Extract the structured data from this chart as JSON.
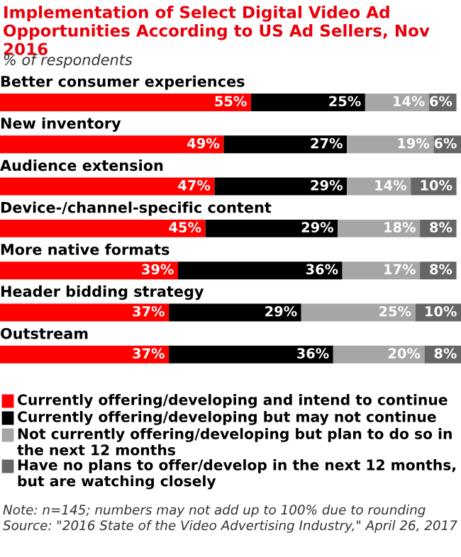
{
  "chart_data": {
    "type": "bar",
    "orientation": "horizontal",
    "stacked": true,
    "title": "Implementation of Select Digital Video Ad Opportunities According to US Ad Sellers, Nov 2016",
    "subtitle": "% of respondents",
    "categories": [
      "Better consumer experiences",
      "New inventory",
      "Audience extension",
      "Device-/channel-specific content",
      "More native formats",
      "Header bidding strategy",
      "Outstream"
    ],
    "series": [
      {
        "name": "Currently offering/developing and intend to continue",
        "color": "#ff0000",
        "values": [
          55,
          49,
          47,
          45,
          39,
          37,
          37
        ],
        "value_labels": [
          "55%",
          "49%",
          "47%",
          "45%",
          "39%",
          "37%",
          "37%"
        ]
      },
      {
        "name": "Currently offering/developing but may not continue",
        "color": "#000000",
        "values": [
          25,
          27,
          29,
          29,
          36,
          29,
          36
        ],
        "value_labels": [
          "25%",
          "27%",
          "29%",
          "29%",
          "36%",
          "29%",
          "36%"
        ]
      },
      {
        "name": "Not currently offering/developing but plan to do so in the next 12 months",
        "color": "#a6a6a6",
        "values": [
          14,
          19,
          14,
          18,
          17,
          25,
          20
        ],
        "value_labels": [
          "14%",
          "19%",
          "14%",
          "18%",
          "17%",
          "25%",
          "20%"
        ]
      },
      {
        "name": "Have no plans to offer/develop in the next 12 months, but are watching closely",
        "color": "#666666",
        "values": [
          6,
          6,
          10,
          8,
          8,
          10,
          8
        ],
        "value_labels": [
          "6%",
          "6%",
          "10%",
          "8%",
          "8%",
          "10%",
          "8%"
        ]
      }
    ],
    "legend": "bottom",
    "annotations": [
      "Note: n=145; numbers may not add up to 100% due to rounding",
      "Source: \"2016 State of the Video Advertising Industry,\" April 26, 2017"
    ]
  }
}
